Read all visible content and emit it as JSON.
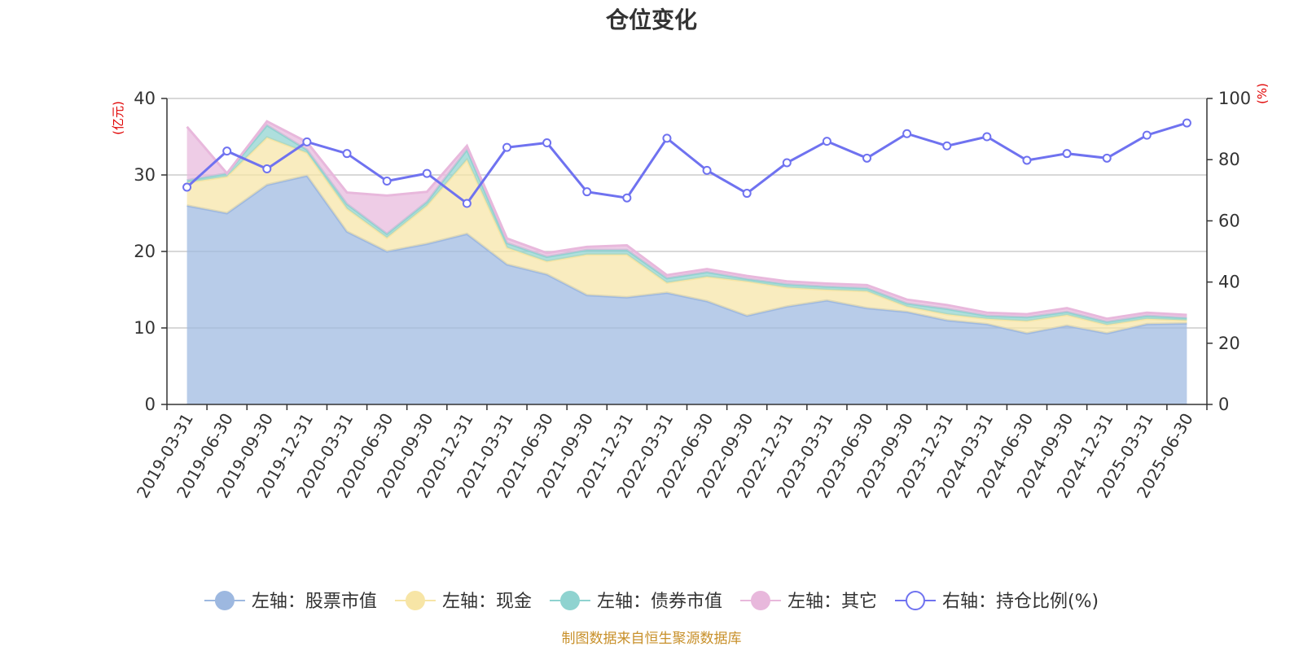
{
  "chart_data": {
    "type": "area",
    "title": "仓位变化",
    "left_unit": "(亿元)",
    "right_unit": "(%)",
    "categories": [
      "2019-03-31",
      "2019-06-30",
      "2019-09-30",
      "2019-12-31",
      "2020-03-31",
      "2020-06-30",
      "2020-09-30",
      "2020-12-31",
      "2021-03-31",
      "2021-06-30",
      "2021-09-30",
      "2021-12-31",
      "2022-03-31",
      "2022-06-30",
      "2022-09-30",
      "2022-12-31",
      "2023-03-31",
      "2023-06-30",
      "2023-09-30",
      "2023-12-31",
      "2024-03-31",
      "2024-06-30",
      "2024-09-30",
      "2024-12-31",
      "2025-03-31",
      "2025-06-30"
    ],
    "left_axis": {
      "min": 0,
      "max": 40,
      "ticks": [
        0,
        10,
        20,
        30,
        40
      ]
    },
    "right_axis": {
      "min": 0,
      "max": 100,
      "ticks": [
        0,
        20,
        40,
        60,
        80,
        100
      ]
    },
    "stacked_series": [
      {
        "name": "左轴：股票市值",
        "color": "#9db8e0",
        "values": [
          26.0,
          25.0,
          28.7,
          29.9,
          22.6,
          20.0,
          21.0,
          22.3,
          18.3,
          17.0,
          14.3,
          14.0,
          14.6,
          13.5,
          11.6,
          12.8,
          13.6,
          12.6,
          12.1,
          11.0,
          10.5,
          9.3,
          10.3,
          9.3,
          10.5,
          10.6
        ]
      },
      {
        "name": "左轴：现金",
        "color": "#f7e5a6",
        "values": [
          3.0,
          4.8,
          6.2,
          3.0,
          3.0,
          1.8,
          5.0,
          9.7,
          2.2,
          1.7,
          5.3,
          5.6,
          1.3,
          3.2,
          4.5,
          2.5,
          1.4,
          2.2,
          0.7,
          0.8,
          0.7,
          1.6,
          1.4,
          1.1,
          0.7,
          0.4
        ]
      },
      {
        "name": "左轴：债券市值",
        "color": "#8fd3d0",
        "values": [
          0.3,
          0.4,
          1.6,
          0.4,
          0.6,
          0.5,
          0.5,
          1.3,
          0.6,
          0.6,
          0.6,
          0.6,
          0.6,
          0.6,
          0.3,
          0.4,
          0.4,
          0.4,
          0.4,
          0.7,
          0.4,
          0.5,
          0.4,
          0.4,
          0.4,
          0.3
        ]
      },
      {
        "name": "左轴：其它",
        "color": "#e8b8dc",
        "values": [
          7.0,
          0.0,
          0.5,
          1.0,
          1.5,
          5.0,
          1.3,
          0.5,
          0.6,
          0.5,
          0.4,
          0.6,
          0.4,
          0.4,
          0.4,
          0.4,
          0.4,
          0.4,
          0.5,
          0.5,
          0.4,
          0.4,
          0.5,
          0.4,
          0.4,
          0.4
        ]
      }
    ],
    "line_series": {
      "name": "右轴：持仓比例(%)",
      "color": "#6f72f0",
      "values": [
        71.0,
        82.8,
        77.0,
        85.8,
        82.0,
        73.0,
        75.5,
        65.7,
        84.0,
        85.5,
        69.5,
        67.5,
        87.0,
        76.5,
        69.0,
        79.0,
        86.0,
        80.5,
        88.5,
        84.5,
        87.5,
        79.8,
        82.0,
        80.5,
        88.0,
        92.0
      ]
    },
    "grid": true,
    "legend_position": "bottom"
  },
  "footer": "制图数据来自恒生聚源数据库"
}
